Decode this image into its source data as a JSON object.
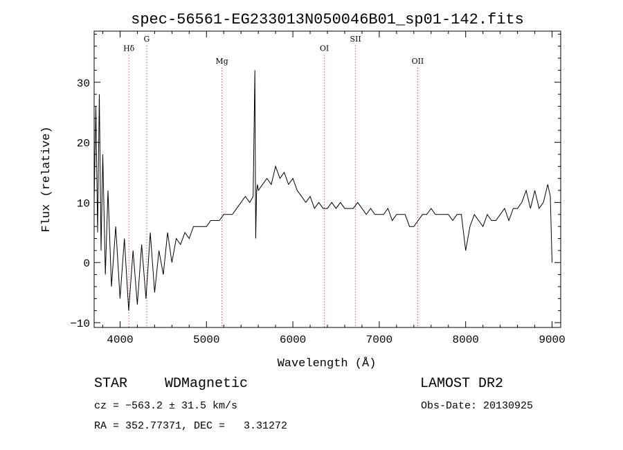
{
  "chart_data": {
    "type": "line",
    "title": "spec-56561-EG233013N050046B01_sp01-142.fits",
    "xlabel": "Wavelength (Å)",
    "ylabel": "Flux (relative)",
    "xlim": [
      3700,
      9100
    ],
    "ylim": [
      -10.8,
      38.5
    ],
    "x_ticks": [
      4000,
      5000,
      6000,
      7000,
      8000,
      9000
    ],
    "y_ticks": [
      -10,
      0,
      10,
      20,
      30
    ],
    "grid": false,
    "line_color": "#000000",
    "marker_color": "#cc0000",
    "series": [
      {
        "x": [
          3700,
          3720,
          3740,
          3760,
          3780,
          3800,
          3830,
          3860,
          3900,
          3950,
          4000,
          4050,
          4100,
          4150,
          4200,
          4250,
          4300,
          4350,
          4400,
          4450,
          4500,
          4550,
          4600,
          4650,
          4700,
          4750,
          4800,
          4850,
          4900,
          4950,
          5000,
          5050,
          5100,
          5150,
          5200,
          5250,
          5300,
          5350,
          5400,
          5450,
          5500,
          5540,
          5560,
          5570,
          5580,
          5590,
          5600,
          5650,
          5700,
          5750,
          5800,
          5850,
          5900,
          5950,
          6000,
          6050,
          6100,
          6150,
          6200,
          6250,
          6300,
          6350,
          6400,
          6450,
          6500,
          6550,
          6600,
          6650,
          6700,
          6750,
          6800,
          6850,
          6900,
          6950,
          7000,
          7050,
          7100,
          7150,
          7200,
          7250,
          7300,
          7350,
          7400,
          7450,
          7500,
          7550,
          7600,
          7650,
          7700,
          7750,
          7800,
          7850,
          7900,
          7950,
          8000,
          8050,
          8100,
          8150,
          8200,
          8250,
          8300,
          8350,
          8400,
          8450,
          8500,
          8550,
          8600,
          8650,
          8700,
          8750,
          8800,
          8850,
          8900,
          8950,
          8980,
          9000
        ],
        "y": [
          10,
          26,
          5,
          28,
          2,
          18,
          -2,
          12,
          -4,
          6,
          -6,
          4,
          -8,
          2,
          -7,
          3,
          -6,
          5,
          -5,
          2,
          -2,
          5,
          0,
          4,
          3,
          5,
          4,
          6,
          6,
          6,
          6,
          7,
          7,
          7,
          8,
          8,
          8,
          9,
          10,
          11,
          10,
          11,
          32,
          4,
          12,
          13,
          12,
          13,
          14,
          13,
          16,
          14,
          15,
          13,
          14,
          12,
          11,
          10,
          11,
          9,
          10,
          9,
          9,
          10,
          9,
          10,
          9,
          9,
          9,
          10,
          9,
          8,
          9,
          8,
          8,
          8,
          9,
          7,
          8,
          8,
          8,
          6,
          6,
          7,
          8,
          8,
          9,
          8,
          8,
          8,
          8,
          7,
          8,
          8,
          2,
          6,
          8,
          7,
          6,
          8,
          7,
          7,
          8,
          9,
          7,
          9,
          9,
          10,
          12,
          9,
          12,
          9,
          10,
          13,
          11,
          0
        ]
      }
    ],
    "line_markers": [
      {
        "label": "Hδ",
        "x": 4102,
        "label_y": 35.2
      },
      {
        "label": "G",
        "x": 4308,
        "label_y": 36.8
      },
      {
        "label": "Mg",
        "x": 5178,
        "label_y": 33.1
      },
      {
        "label": "OI",
        "x": 6364,
        "label_y": 35.2
      },
      {
        "label": "SII",
        "x": 6725,
        "label_y": 36.8
      },
      {
        "label": "OII",
        "x": 7445,
        "label_y": 33.1
      }
    ]
  },
  "info": {
    "object_class": "STAR",
    "subclass": "WDMagnetic",
    "survey": "LAMOST DR2",
    "redshift": "cz = −563.2 ± 31.5 km/s",
    "obs_date": "Obs-Date: 20130925",
    "coords": "RA = 352.77371, DEC =   3.31272"
  }
}
